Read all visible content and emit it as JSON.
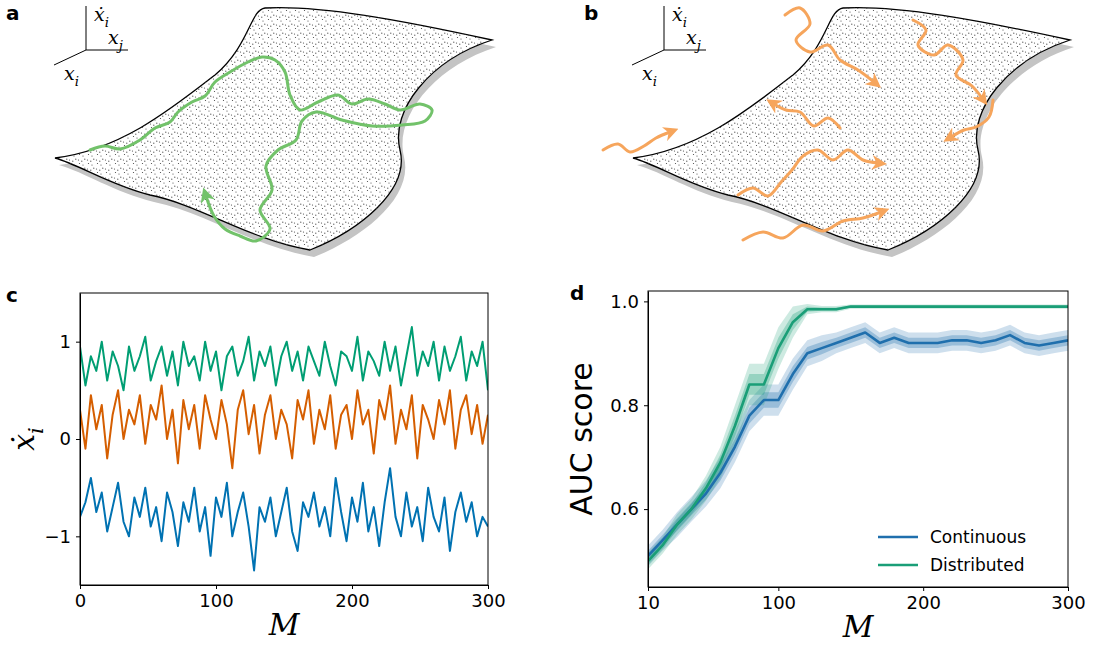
{
  "diagrams": [
    {
      "label": "a",
      "axes": [
        {
          "text": "ẋ",
          "sub": "i"
        },
        {
          "text": "x",
          "sub": "j"
        },
        {
          "text": "x",
          "sub": "i"
        }
      ]
    },
    {
      "label": "b",
      "axes": [
        {
          "text": "ẋ",
          "sub": "i"
        },
        {
          "text": "x",
          "sub": "j"
        },
        {
          "text": "x",
          "sub": "i"
        }
      ]
    }
  ],
  "chart_data": [
    {
      "type": "line",
      "label": "c",
      "x_label": "M",
      "y_label": {
        "text": "ẋ",
        "sub": "i"
      },
      "x": [
        0,
        4,
        8,
        12,
        16,
        20,
        24,
        28,
        32,
        36,
        40,
        44,
        48,
        52,
        56,
        60,
        64,
        68,
        72,
        76,
        80,
        84,
        88,
        92,
        96,
        100,
        104,
        108,
        112,
        116,
        120,
        124,
        128,
        132,
        136,
        140,
        144,
        148,
        152,
        156,
        160,
        164,
        168,
        172,
        176,
        180,
        184,
        188,
        192,
        196,
        200,
        204,
        208,
        212,
        216,
        220,
        224,
        228,
        232,
        236,
        240,
        244,
        248,
        252,
        256,
        260,
        264,
        268,
        272,
        276,
        280,
        284,
        288,
        292,
        296,
        300
      ],
      "xlim": [
        0,
        300
      ],
      "xticks": [
        0,
        100,
        200,
        300
      ],
      "ylim": [
        -1.5,
        1.5
      ],
      "yticks": [
        {
          "value": -1,
          "label": "−1"
        },
        0,
        1
      ],
      "series": [
        {
          "color": "#009e73",
          "values": [
            0.95,
            0.55,
            0.85,
            0.7,
            1.0,
            0.6,
            0.9,
            0.75,
            0.5,
            0.95,
            0.7,
            0.85,
            1.05,
            0.6,
            0.8,
            0.95,
            0.65,
            0.9,
            0.55,
            1.0,
            0.75,
            0.85,
            0.6,
            1.0,
            0.7,
            0.9,
            0.5,
            0.85,
            0.95,
            0.65,
            0.8,
            1.05,
            0.6,
            0.9,
            0.75,
            0.95,
            0.55,
            0.85,
            1.0,
            0.7,
            0.9,
            0.6,
            0.95,
            0.8,
            0.65,
            1.0,
            0.75,
            0.55,
            0.9,
            0.85,
            0.7,
            1.05,
            0.6,
            0.9,
            0.8,
            0.65,
            1.0,
            0.7,
            0.95,
            0.55,
            0.85,
            1.15,
            0.65,
            0.9,
            0.75,
            1.0,
            0.6,
            0.95,
            0.7,
            0.85,
            1.05,
            0.6,
            0.9,
            0.75,
            1.0,
            0.5
          ]
        },
        {
          "color": "#d55e00",
          "values": [
            0.3,
            -0.1,
            0.45,
            0.1,
            0.35,
            -0.2,
            0.25,
            0.5,
            0.0,
            0.3,
            0.15,
            0.45,
            -0.05,
            0.35,
            0.2,
            0.55,
            0.0,
            0.3,
            -0.25,
            0.4,
            0.1,
            0.35,
            -0.1,
            0.45,
            0.2,
            0.0,
            0.4,
            0.15,
            -0.3,
            0.3,
            0.5,
            0.05,
            0.35,
            -0.15,
            0.25,
            0.45,
            0.0,
            0.3,
            0.15,
            -0.2,
            0.4,
            0.2,
            0.5,
            -0.05,
            0.3,
            0.1,
            0.45,
            -0.1,
            0.25,
            0.35,
            0.0,
            0.5,
            0.15,
            0.3,
            -0.15,
            0.4,
            0.2,
            0.55,
            -0.05,
            0.3,
            0.1,
            0.45,
            -0.2,
            0.35,
            0.2,
            0.0,
            0.4,
            0.15,
            0.5,
            -0.1,
            0.3,
            0.45,
            0.05,
            0.35,
            -0.05,
            0.25
          ]
        },
        {
          "color": "#0072b2",
          "values": [
            -0.8,
            -0.65,
            -0.4,
            -0.75,
            -0.55,
            -0.95,
            -0.7,
            -0.45,
            -0.85,
            -1.0,
            -0.6,
            -0.8,
            -0.5,
            -0.9,
            -0.7,
            -1.05,
            -0.55,
            -0.75,
            -1.1,
            -0.65,
            -0.85,
            -0.5,
            -0.95,
            -0.7,
            -1.2,
            -0.6,
            -0.8,
            -0.45,
            -1.0,
            -0.75,
            -0.55,
            -0.9,
            -1.35,
            -0.7,
            -0.85,
            -0.6,
            -1.0,
            -0.75,
            -0.5,
            -0.95,
            -1.15,
            -0.65,
            -0.8,
            -0.55,
            -0.9,
            -0.7,
            -1.0,
            -0.4,
            -0.75,
            -1.05,
            -0.6,
            -0.85,
            -0.45,
            -0.95,
            -0.7,
            -1.1,
            -0.65,
            -0.3,
            -0.8,
            -1.0,
            -0.55,
            -0.9,
            -0.7,
            -1.05,
            -0.5,
            -0.8,
            -0.95,
            -0.6,
            -1.15,
            -0.75,
            -0.55,
            -0.85,
            -0.65,
            -1.0,
            -0.8,
            -0.9
          ]
        }
      ]
    },
    {
      "type": "line",
      "label": "d",
      "x_label": "M",
      "y_label": "AUC score",
      "x": [
        10,
        20,
        30,
        40,
        50,
        60,
        70,
        80,
        90,
        100,
        110,
        120,
        130,
        140,
        150,
        160,
        170,
        180,
        190,
        200,
        210,
        220,
        230,
        240,
        250,
        260,
        270,
        280,
        290,
        300
      ],
      "xlim": [
        10,
        300
      ],
      "xticks": [
        10,
        100,
        200,
        300
      ],
      "ylim": [
        0.45,
        1.02
      ],
      "yticks": [
        0.6,
        0.8,
        {
          "value": 1,
          "label": "1.0"
        }
      ],
      "legend": "lower right",
      "series": [
        {
          "name": "Continuous",
          "color": "#1f6fad",
          "values": [
            0.51,
            0.54,
            0.57,
            0.6,
            0.63,
            0.67,
            0.72,
            0.78,
            0.81,
            0.81,
            0.86,
            0.9,
            0.91,
            0.92,
            0.93,
            0.94,
            0.92,
            0.93,
            0.92,
            0.92,
            0.92,
            0.925,
            0.925,
            0.92,
            0.925,
            0.935,
            0.92,
            0.915,
            0.92,
            0.925
          ],
          "error_inner": [
            0.01,
            0.01,
            0.012,
            0.012,
            0.012,
            0.015,
            0.015,
            0.015,
            0.015,
            0.015,
            0.015,
            0.012,
            0.012,
            0.01,
            0.01,
            0.01,
            0.01,
            0.01,
            0.01,
            0.01,
            0.01,
            0.01,
            0.01,
            0.01,
            0.01,
            0.01,
            0.01,
            0.01,
            0.01,
            0.01
          ],
          "error_outer": [
            0.02,
            0.02,
            0.024,
            0.024,
            0.025,
            0.03,
            0.03,
            0.03,
            0.03,
            0.03,
            0.03,
            0.025,
            0.025,
            0.02,
            0.02,
            0.02,
            0.02,
            0.02,
            0.02,
            0.02,
            0.02,
            0.02,
            0.02,
            0.02,
            0.02,
            0.02,
            0.02,
            0.02,
            0.02,
            0.02
          ]
        },
        {
          "name": "Distributed",
          "color": "#1a9e77",
          "values": [
            0.5,
            0.53,
            0.57,
            0.6,
            0.64,
            0.69,
            0.76,
            0.84,
            0.84,
            0.91,
            0.96,
            0.985,
            0.985,
            0.985,
            0.99,
            0.99,
            0.99,
            0.99,
            0.99,
            0.99,
            0.99,
            0.99,
            0.99,
            0.99,
            0.99,
            0.99,
            0.99,
            0.99,
            0.99,
            0.99
          ],
          "error_inner": [
            0.008,
            0.008,
            0.01,
            0.01,
            0.012,
            0.015,
            0.02,
            0.02,
            0.02,
            0.02,
            0.015,
            0.005,
            0.003,
            0.003,
            0.002,
            0.002,
            0.002,
            0.002,
            0.002,
            0.002,
            0.002,
            0.002,
            0.002,
            0.002,
            0.002,
            0.002,
            0.002,
            0.002,
            0.002,
            0.002
          ],
          "error_outer": [
            0.016,
            0.016,
            0.02,
            0.02,
            0.024,
            0.03,
            0.04,
            0.04,
            0.04,
            0.04,
            0.03,
            0.01,
            0.006,
            0.006,
            0.004,
            0.004,
            0.004,
            0.004,
            0.004,
            0.004,
            0.004,
            0.004,
            0.004,
            0.004,
            0.004,
            0.004,
            0.004,
            0.004,
            0.004,
            0.004
          ]
        }
      ]
    }
  ]
}
